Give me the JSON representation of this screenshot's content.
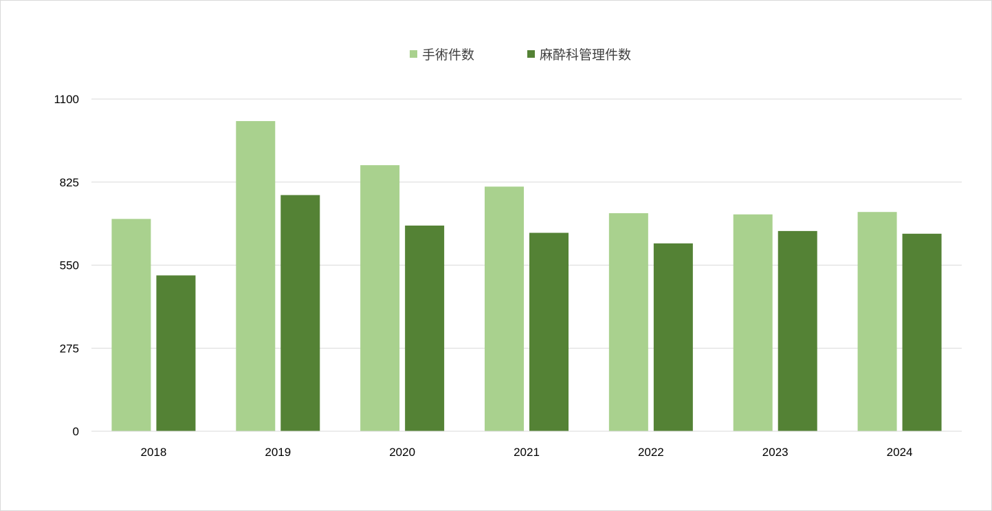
{
  "chart_data": {
    "type": "bar",
    "title": "",
    "xlabel": "",
    "ylabel": "",
    "categories": [
      "2018",
      "2019",
      "2020",
      "2021",
      "2022",
      "2023",
      "2024"
    ],
    "series": [
      {
        "name": "手術件数",
        "color": "#a9d18e",
        "values": [
          703,
          1027,
          881,
          810,
          722,
          718,
          726
        ]
      },
      {
        "name": "麻酔科管理件数",
        "color": "#548235",
        "values": [
          516,
          782,
          681,
          657,
          622,
          663,
          654
        ]
      }
    ],
    "ylim": [
      0,
      1100
    ],
    "yticks": [
      "0",
      "275",
      "550",
      "825",
      "1100"
    ],
    "grid": true,
    "legend": "top-center",
    "gridColor": "#d9d9d9"
  }
}
